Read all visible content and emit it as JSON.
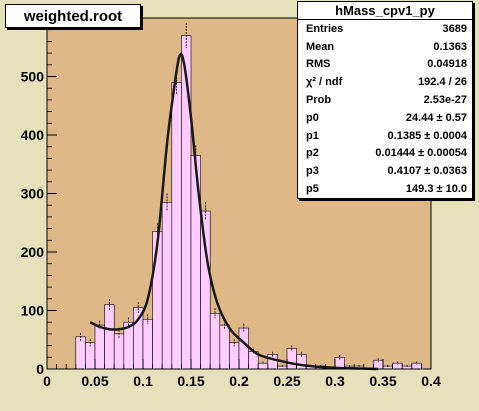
{
  "canvas_title": "weighted.root",
  "stats": {
    "title": "hMass_cpv1_py",
    "rows": [
      {
        "label": "Entries",
        "value": "3689"
      },
      {
        "label": "Mean",
        "value": "0.1363"
      },
      {
        "label": "RMS",
        "value": "0.04918"
      },
      {
        "label": "χ² / ndf",
        "value": "192.4 / 26"
      },
      {
        "label": "Prob",
        "value": "2.53e-27"
      },
      {
        "label": "p0",
        "value": "24.44 ± 0.57"
      },
      {
        "label": "p1",
        "value": "0.1385 ± 0.0004"
      },
      {
        "label": "p2",
        "value": "0.01444 ± 0.00054"
      },
      {
        "label": "p3",
        "value": "0.4107 ± 0.0363"
      },
      {
        "label": "p5",
        "value": "149.3 ± 10.0"
      }
    ]
  },
  "colors": {
    "canvas_bg": "#e5e1bb",
    "frame_bg": "#deb887",
    "bar_fill": "#ffccff",
    "fit_line": "#1a1a1a"
  },
  "chart_data": {
    "type": "bar",
    "xlim": [
      0,
      0.4
    ],
    "ylim": [
      0,
      600
    ],
    "bin_width": 0.01,
    "x_ticks": [
      "0",
      "0.05",
      "0.1",
      "0.15",
      "0.2",
      "0.25",
      "0.3",
      "0.35",
      "0.4"
    ],
    "y_ticks": [
      "0",
      "100",
      "200",
      "300",
      "400",
      "500",
      "600"
    ],
    "bins": [
      {
        "x": 0.03,
        "y": 55
      },
      {
        "x": 0.04,
        "y": 45
      },
      {
        "x": 0.05,
        "y": 75
      },
      {
        "x": 0.06,
        "y": 110
      },
      {
        "x": 0.07,
        "y": 60
      },
      {
        "x": 0.08,
        "y": 80
      },
      {
        "x": 0.09,
        "y": 105
      },
      {
        "x": 0.1,
        "y": 85
      },
      {
        "x": 0.11,
        "y": 235
      },
      {
        "x": 0.12,
        "y": 285
      },
      {
        "x": 0.13,
        "y": 490
      },
      {
        "x": 0.14,
        "y": 570
      },
      {
        "x": 0.15,
        "y": 365
      },
      {
        "x": 0.16,
        "y": 270
      },
      {
        "x": 0.17,
        "y": 95
      },
      {
        "x": 0.18,
        "y": 75
      },
      {
        "x": 0.19,
        "y": 45
      },
      {
        "x": 0.2,
        "y": 70
      },
      {
        "x": 0.21,
        "y": 30
      },
      {
        "x": 0.22,
        "y": 10
      },
      {
        "x": 0.23,
        "y": 25
      },
      {
        "x": 0.24,
        "y": 5
      },
      {
        "x": 0.25,
        "y": 35
      },
      {
        "x": 0.26,
        "y": 25
      },
      {
        "x": 0.27,
        "y": 5
      },
      {
        "x": 0.28,
        "y": 5
      },
      {
        "x": 0.29,
        "y": 0
      },
      {
        "x": 0.3,
        "y": 20
      },
      {
        "x": 0.31,
        "y": 5
      },
      {
        "x": 0.32,
        "y": 5
      },
      {
        "x": 0.33,
        "y": 0
      },
      {
        "x": 0.34,
        "y": 15
      },
      {
        "x": 0.35,
        "y": 5
      },
      {
        "x": 0.36,
        "y": 10
      },
      {
        "x": 0.37,
        "y": 5
      },
      {
        "x": 0.38,
        "y": 10
      },
      {
        "x": 0.39,
        "y": 0
      }
    ],
    "fit_curve": [
      {
        "x": 0.045,
        "y": 80
      },
      {
        "x": 0.055,
        "y": 72
      },
      {
        "x": 0.065,
        "y": 68
      },
      {
        "x": 0.075,
        "y": 68
      },
      {
        "x": 0.085,
        "y": 72
      },
      {
        "x": 0.095,
        "y": 85
      },
      {
        "x": 0.105,
        "y": 120
      },
      {
        "x": 0.115,
        "y": 215
      },
      {
        "x": 0.125,
        "y": 385
      },
      {
        "x": 0.132,
        "y": 475
      },
      {
        "x": 0.138,
        "y": 535
      },
      {
        "x": 0.143,
        "y": 520
      },
      {
        "x": 0.15,
        "y": 430
      },
      {
        "x": 0.158,
        "y": 300
      },
      {
        "x": 0.167,
        "y": 185
      },
      {
        "x": 0.177,
        "y": 115
      },
      {
        "x": 0.19,
        "y": 70
      },
      {
        "x": 0.205,
        "y": 45
      },
      {
        "x": 0.22,
        "y": 25
      },
      {
        "x": 0.24,
        "y": 15
      },
      {
        "x": 0.26,
        "y": 8
      },
      {
        "x": 0.28,
        "y": 4
      },
      {
        "x": 0.3,
        "y": 2
      },
      {
        "x": 0.32,
        "y": 1
      },
      {
        "x": 0.345,
        "y": 0
      }
    ]
  }
}
